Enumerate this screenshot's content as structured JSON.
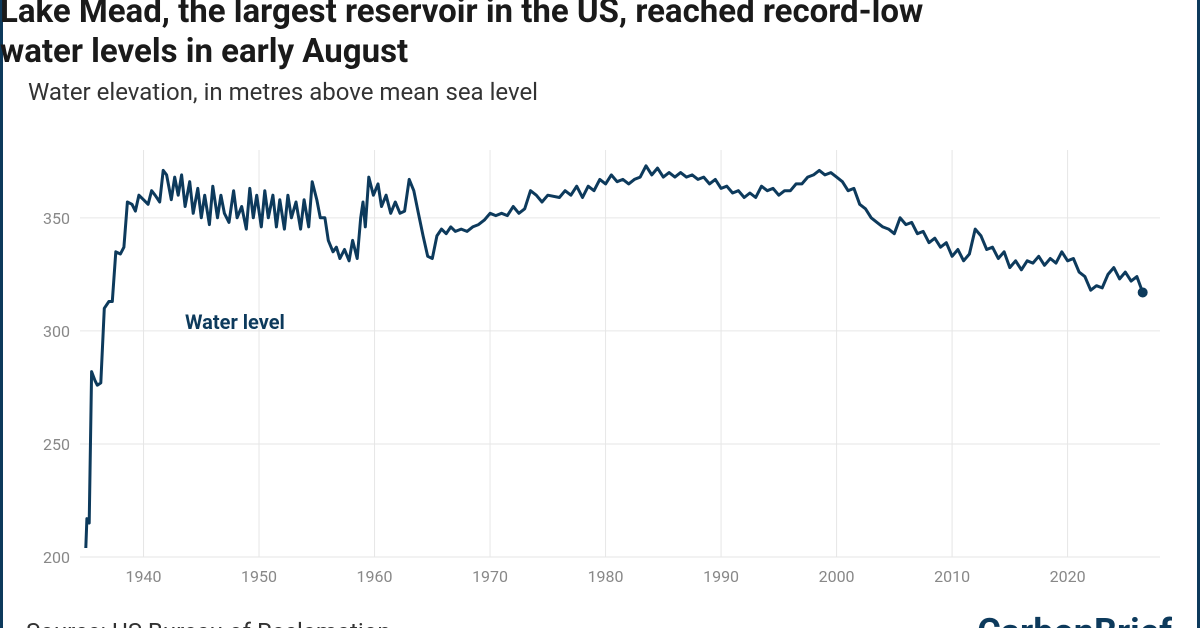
{
  "chart_data": {
    "type": "line",
    "title": [
      "Lake Mead, the largest reservoir in the US, reached record-low",
      "water levels in early August"
    ],
    "subtitle": "Water elevation, in metres above mean sea level",
    "source": "Source: US Bureau of Reclamation",
    "logo": "CarbonBrief",
    "xlim": [
      1934.5,
      2028
    ],
    "xticks": [
      1940,
      1950,
      1960,
      1970,
      1980,
      1990,
      2000,
      2010,
      2020
    ],
    "ylim": [
      200,
      380
    ],
    "yticks": [
      200,
      250,
      300,
      350
    ],
    "grid": true,
    "series": [
      {
        "name": "Water level",
        "color": "#0d3a5c",
        "x": [
          1935.0,
          1935.1,
          1935.3,
          1935.5,
          1935.8,
          1936.0,
          1936.3,
          1936.6,
          1937.0,
          1937.3,
          1937.6,
          1938.0,
          1938.3,
          1938.6,
          1939.0,
          1939.3,
          1939.6,
          1940.0,
          1940.4,
          1940.7,
          1941.0,
          1941.4,
          1941.7,
          1942.0,
          1942.4,
          1942.7,
          1943.0,
          1943.3,
          1943.6,
          1944.0,
          1944.3,
          1944.7,
          1945.0,
          1945.3,
          1945.7,
          1946.0,
          1946.4,
          1946.7,
          1947.0,
          1947.4,
          1947.8,
          1948.1,
          1948.5,
          1948.9,
          1949.2,
          1949.5,
          1949.8,
          1950.2,
          1950.5,
          1950.8,
          1951.2,
          1951.5,
          1951.8,
          1952.2,
          1952.5,
          1952.8,
          1953.2,
          1953.6,
          1953.9,
          1954.3,
          1954.6,
          1955.0,
          1955.3,
          1955.7,
          1956.0,
          1956.4,
          1956.7,
          1957.0,
          1957.4,
          1957.8,
          1958.1,
          1958.5,
          1958.8,
          1959.0,
          1959.2,
          1959.5,
          1959.9,
          1960.3,
          1960.6,
          1961.0,
          1961.4,
          1961.8,
          1962.2,
          1962.6,
          1963.0,
          1963.4,
          1963.8,
          1964.2,
          1964.6,
          1965.0,
          1965.4,
          1965.8,
          1966.2,
          1966.6,
          1967.0,
          1967.5,
          1968.0,
          1968.5,
          1969.0,
          1969.5,
          1970.0,
          1970.5,
          1971.0,
          1971.5,
          1972.0,
          1972.5,
          1973.0,
          1973.5,
          1974.0,
          1974.5,
          1975.0,
          1976.0,
          1976.5,
          1977.0,
          1977.5,
          1978.0,
          1978.5,
          1979.0,
          1979.5,
          1980.0,
          1980.5,
          1981.0,
          1981.5,
          1982.0,
          1982.5,
          1983.0,
          1983.5,
          1984.0,
          1984.5,
          1985.0,
          1985.5,
          1986.0,
          1986.5,
          1987.0,
          1987.5,
          1988.0,
          1988.5,
          1989.0,
          1989.5,
          1990.0,
          1990.5,
          1991.0,
          1991.5,
          1992.0,
          1992.5,
          1993.0,
          1993.5,
          1994.0,
          1994.5,
          1995.0,
          1995.5,
          1996.0,
          1996.5,
          1997.0,
          1997.5,
          1998.0,
          1998.5,
          1999.0,
          1999.5,
          2000.0,
          2000.5,
          2001.0,
          2001.5,
          2002.0,
          2002.5,
          2003.0,
          2003.5,
          2004.0,
          2004.5,
          2005.0,
          2005.5,
          2006.0,
          2006.5,
          2007.0,
          2007.5,
          2008.0,
          2008.5,
          2009.0,
          2009.5,
          2010.0,
          2010.5,
          2011.0,
          2011.5,
          2012.0,
          2012.5,
          2013.0,
          2013.5,
          2014.0,
          2014.5,
          2015.0,
          2015.5,
          2016.0,
          2016.5,
          2017.0,
          2017.5,
          2018.0,
          2018.5,
          2019.0,
          2019.5,
          2020.0,
          2020.5,
          2021.0,
          2021.5,
          2022.0,
          2022.5,
          2023.0,
          2023.5,
          2024.0,
          2024.5,
          2025.0,
          2025.5,
          2026.0,
          2026.5
        ],
        "values": [
          204,
          217,
          215,
          282,
          278,
          276,
          277,
          310,
          313,
          313,
          335,
          334,
          337,
          357,
          356,
          353,
          360,
          358,
          356,
          362,
          360,
          357,
          371,
          369,
          358,
          368,
          360,
          369,
          355,
          366,
          352,
          363,
          350,
          360,
          347,
          364,
          350,
          360,
          352,
          348,
          362,
          350,
          355,
          345,
          363,
          350,
          360,
          346,
          362,
          350,
          360,
          346,
          358,
          345,
          360,
          350,
          357,
          345,
          358,
          346,
          366,
          358,
          350,
          350,
          340,
          335,
          337,
          332,
          336,
          331,
          340,
          332,
          350,
          357,
          346,
          368,
          360,
          365,
          355,
          360,
          352,
          357,
          352,
          353,
          367,
          362,
          352,
          342,
          333,
          332,
          342,
          345,
          343,
          346,
          344,
          345,
          344,
          346,
          347,
          349,
          352,
          351,
          352,
          351,
          355,
          352,
          354,
          362,
          360,
          357,
          360,
          359,
          362,
          360,
          364,
          359,
          364,
          362,
          367,
          365,
          369,
          366,
          367,
          365,
          367,
          368,
          373,
          369,
          372,
          368,
          370,
          368,
          370,
          368,
          369,
          367,
          368,
          365,
          367,
          363,
          364,
          361,
          362,
          359,
          361,
          359,
          364,
          362,
          363,
          360,
          362,
          362,
          365,
          365,
          368,
          369,
          371,
          369,
          370,
          368,
          366,
          362,
          363,
          356,
          354,
          350,
          348,
          346,
          345,
          343,
          350,
          347,
          348,
          343,
          344,
          339,
          341,
          337,
          339,
          333,
          336,
          331,
          334,
          345,
          342,
          336,
          337,
          332,
          335,
          328,
          331,
          327,
          331,
          330,
          333,
          329,
          332,
          330,
          335,
          331,
          332,
          326,
          324,
          318,
          320,
          319,
          325,
          328,
          323,
          326,
          322,
          324,
          317
        ]
      }
    ]
  }
}
